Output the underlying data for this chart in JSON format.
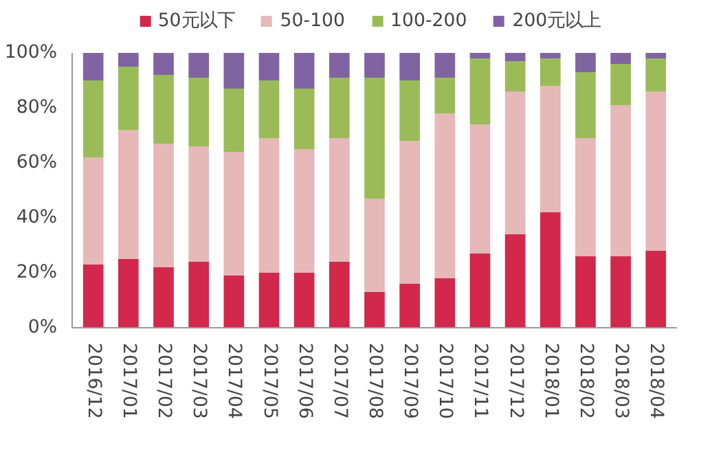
{
  "chart_data": {
    "type": "bar",
    "stacked": true,
    "categories": [
      "2016/12",
      "2017/01",
      "2017/02",
      "2017/03",
      "2017/04",
      "2017/05",
      "2017/06",
      "2017/07",
      "2017/08",
      "2017/09",
      "2017/10",
      "2017/11",
      "2017/12",
      "2018/01",
      "2018/02",
      "2018/03",
      "2018/04"
    ],
    "series": [
      {
        "name": "50元以下",
        "color": "#d2284b",
        "values": [
          23,
          25,
          22,
          24,
          19,
          20,
          20,
          24,
          13,
          16,
          18,
          27,
          34,
          42,
          26,
          26,
          28
        ]
      },
      {
        "name": "50-100",
        "color": "#e6b8b7",
        "values": [
          39,
          47,
          45,
          42,
          45,
          49,
          45,
          45,
          34,
          52,
          60,
          47,
          52,
          46,
          43,
          55,
          58
        ]
      },
      {
        "name": "100-200",
        "color": "#9bbb59",
        "values": [
          28,
          23,
          25,
          25,
          23,
          21,
          22,
          22,
          44,
          22,
          13,
          24,
          11,
          10,
          24,
          15,
          12
        ]
      },
      {
        "name": "200元以上",
        "color": "#8064a2",
        "values": [
          10,
          5,
          8,
          9,
          13,
          10,
          13,
          9,
          9,
          10,
          9,
          2,
          3,
          2,
          7,
          4,
          2
        ]
      }
    ],
    "ylim": [
      0,
      100
    ],
    "yticks": [
      {
        "value": 0,
        "label": "0%"
      },
      {
        "value": 20,
        "label": "20%"
      },
      {
        "value": 40,
        "label": "40%"
      },
      {
        "value": 60,
        "label": "60%"
      },
      {
        "value": 80,
        "label": "80%"
      },
      {
        "value": 100,
        "label": "100%"
      }
    ],
    "grid": false,
    "legend": "top"
  }
}
